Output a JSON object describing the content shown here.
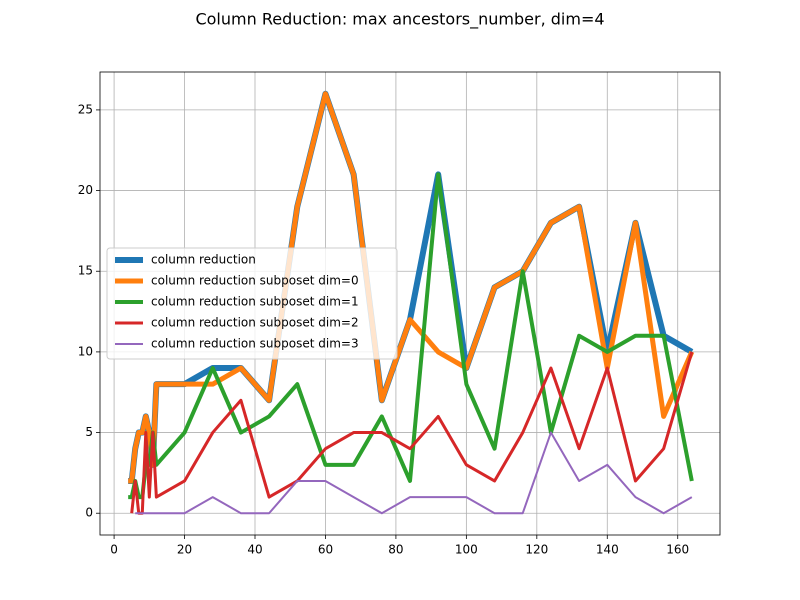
{
  "chart_data": {
    "type": "line",
    "title": "Column Reduction: max ancestors_number, dim=4",
    "x": [
      4,
      5,
      6,
      7,
      8,
      9,
      10,
      11,
      12,
      20,
      28,
      36,
      44,
      52,
      60,
      68,
      76,
      84,
      92,
      100,
      108,
      116,
      124,
      132,
      140,
      148,
      156,
      164
    ],
    "series": [
      {
        "name": "column reduction",
        "color": "#1f77b4",
        "width": 6,
        "values": [
          2,
          2,
          4,
          5,
          5,
          6,
          5,
          3,
          8,
          8,
          9,
          9,
          7,
          19,
          26,
          21,
          7,
          12,
          21,
          9,
          14,
          15,
          18,
          19,
          10,
          18,
          11,
          10
        ]
      },
      {
        "name": "column reduction subposet dim=0",
        "color": "#ff7f0e",
        "width": 5,
        "values": [
          2,
          2,
          4,
          5,
          5,
          6,
          5,
          3,
          8,
          8,
          8,
          9,
          7,
          19,
          26,
          21,
          7,
          12,
          10,
          9,
          14,
          15,
          18,
          19,
          9,
          18,
          6,
          10
        ]
      },
      {
        "name": "column reduction subposet dim=1",
        "color": "#2ca02c",
        "width": 4,
        "values": [
          1,
          1,
          2,
          1,
          1,
          3,
          3,
          5,
          3,
          5,
          9,
          5,
          6,
          8,
          3,
          3,
          6,
          2,
          21,
          8,
          4,
          15,
          5,
          11,
          10,
          11,
          11,
          2
        ]
      },
      {
        "name": "column reduction subposet dim=2",
        "color": "#d62728",
        "width": 3,
        "values": [
          null,
          0,
          2,
          0,
          0,
          5,
          1,
          5,
          1,
          2,
          5,
          7,
          1,
          2,
          4,
          5,
          5,
          4,
          6,
          3,
          2,
          5,
          9,
          4,
          9,
          2,
          4,
          10
        ]
      },
      {
        "name": "column reduction subposet dim=3",
        "color": "#9467bd",
        "width": 2,
        "values": [
          null,
          null,
          0,
          0,
          0,
          0,
          0,
          0,
          0,
          0,
          1,
          0,
          0,
          2,
          2,
          1,
          0,
          1,
          1,
          1,
          0,
          0,
          5,
          2,
          3,
          1,
          0,
          1
        ]
      }
    ],
    "xlim": [
      -4,
      172
    ],
    "ylim": [
      -1.35,
      27.35
    ],
    "xticks": [
      0,
      20,
      40,
      60,
      80,
      100,
      120,
      140,
      160
    ],
    "yticks": [
      0,
      5,
      10,
      15,
      20,
      25
    ],
    "grid": true,
    "legend": "center left"
  }
}
